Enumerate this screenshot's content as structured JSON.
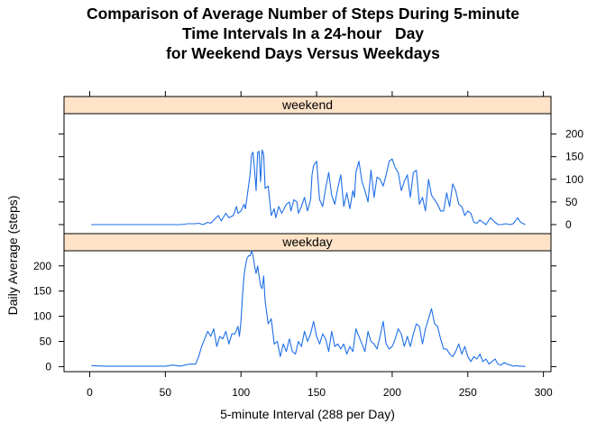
{
  "title_lines": [
    "Comparison of Average Number of Steps During 5-minute",
    "Time Intervals In a 24-hour   Day",
    "for Weekend Days Versus Weekdays"
  ],
  "colors": {
    "line": "#1f6fe8",
    "strip_fill": "#ffe3c8",
    "frame": "#000000"
  },
  "chart_data": {
    "type": "line",
    "layout": "lattice-panels-stacked",
    "xlabel": "5-minute Interval (288 per Day)",
    "ylabel": "Daily Average (steps)",
    "xlim": [
      -17,
      305
    ],
    "x_ticks": [
      0,
      50,
      100,
      150,
      200,
      250,
      300
    ],
    "y_ticks": [
      0,
      50,
      100,
      150,
      200
    ],
    "grid": false,
    "panels": [
      {
        "name": "weekend",
        "ylim": [
          -20,
          245
        ],
        "y_axis_side": "right",
        "series": [
          {
            "x": [
              1,
              10,
              20,
              30,
              40,
              50,
              55,
              60,
              65,
              70,
              72,
              75,
              78,
              80,
              82,
              85,
              87,
              90,
              92,
              95,
              97,
              98,
              100,
              102,
              103,
              104,
              106,
              107,
              108,
              109,
              110,
              111,
              112,
              113,
              114,
              115,
              116,
              118,
              120,
              122,
              123,
              125,
              127,
              130,
              132,
              133,
              135,
              137,
              138,
              140,
              142,
              144,
              146,
              147,
              148,
              150,
              152,
              154,
              156,
              158,
              160,
              162,
              164,
              166,
              168,
              170,
              172,
              174,
              175,
              176,
              178,
              180,
              182,
              184,
              186,
              188,
              190,
              192,
              194,
              196,
              198,
              200,
              202,
              204,
              206,
              208,
              210,
              212,
              214,
              216,
              218,
              220,
              222,
              224,
              226,
              228,
              230,
              232,
              234,
              236,
              238,
              240,
              242,
              244,
              246,
              248,
              250,
              252,
              254,
              256,
              258,
              260,
              262,
              265,
              268,
              270,
              272,
              275,
              278,
              280,
              283,
              285,
              288
            ],
            "y": [
              0,
              0,
              0,
              0,
              0,
              0,
              0,
              0,
              2,
              2,
              3,
              0,
              5,
              3,
              10,
              20,
              8,
              25,
              15,
              20,
              40,
              25,
              30,
              45,
              35,
              60,
              110,
              155,
              160,
              120,
              75,
              160,
              162,
              95,
              165,
              155,
              80,
              85,
              20,
              35,
              15,
              40,
              25,
              45,
              50,
              30,
              55,
              50,
              25,
              40,
              60,
              30,
              55,
              110,
              130,
              140,
              55,
              40,
              80,
              115,
              65,
              45,
              80,
              110,
              40,
              70,
              35,
              75,
              60,
              115,
              140,
              95,
              75,
              50,
              120,
              60,
              105,
              100,
              85,
              110,
              140,
              145,
              125,
              115,
              75,
              95,
              110,
              60,
              115,
              120,
              45,
              60,
              30,
              100,
              65,
              55,
              45,
              30,
              30,
              70,
              40,
              90,
              75,
              45,
              40,
              20,
              30,
              25,
              5,
              3,
              10,
              5,
              0,
              15,
              5,
              0,
              0,
              2,
              0,
              2,
              15,
              5,
              0
            ]
          }
        ]
      },
      {
        "name": "weekday",
        "ylim": [
          -10,
          230
        ],
        "y_axis_side": "left",
        "series": [
          {
            "x": [
              1,
              10,
              20,
              30,
              40,
              50,
              55,
              60,
              63,
              66,
              68,
              70,
              72,
              74,
              76,
              78,
              80,
              82,
              84,
              86,
              88,
              90,
              92,
              94,
              96,
              98,
              99,
              100,
              101,
              102,
              103,
              104,
              105,
              106,
              107,
              108,
              109,
              110,
              111,
              112,
              113,
              114,
              115,
              116,
              118,
              120,
              122,
              124,
              126,
              128,
              130,
              132,
              134,
              136,
              138,
              140,
              142,
              144,
              146,
              148,
              150,
              152,
              154,
              156,
              158,
              160,
              162,
              164,
              166,
              168,
              170,
              172,
              174,
              176,
              178,
              180,
              182,
              184,
              186,
              188,
              190,
              192,
              194,
              196,
              198,
              200,
              202,
              204,
              206,
              208,
              210,
              212,
              214,
              216,
              218,
              220,
              222,
              224,
              226,
              228,
              230,
              232,
              234,
              236,
              238,
              240,
              242,
              244,
              246,
              248,
              250,
              252,
              254,
              256,
              258,
              260,
              262,
              264,
              266,
              268,
              270,
              272,
              274,
              276,
              278,
              280,
              282,
              284,
              286,
              288
            ],
            "y": [
              2,
              1,
              1,
              1,
              1,
              1,
              3,
              1,
              3,
              5,
              5,
              5,
              20,
              40,
              55,
              70,
              60,
              75,
              40,
              60,
              55,
              70,
              45,
              65,
              65,
              80,
              60,
              90,
              140,
              180,
              200,
              215,
              220,
              220,
              230,
              220,
              200,
              185,
              200,
              180,
              160,
              155,
              180,
              130,
              85,
              95,
              45,
              50,
              20,
              45,
              30,
              55,
              30,
              25,
              50,
              40,
              70,
              50,
              65,
              90,
              60,
              45,
              65,
              55,
              30,
              70,
              40,
              45,
              35,
              45,
              25,
              40,
              30,
              75,
              60,
              45,
              30,
              70,
              50,
              45,
              35,
              60,
              90,
              45,
              35,
              40,
              55,
              75,
              65,
              40,
              60,
              40,
              65,
              85,
              80,
              45,
              75,
              95,
              115,
              85,
              80,
              55,
              35,
              35,
              25,
              20,
              30,
              45,
              25,
              40,
              20,
              10,
              20,
              15,
              25,
              10,
              15,
              5,
              10,
              15,
              5,
              3,
              8,
              5,
              3,
              1,
              2,
              1,
              1,
              0
            ]
          }
        ]
      }
    ]
  }
}
